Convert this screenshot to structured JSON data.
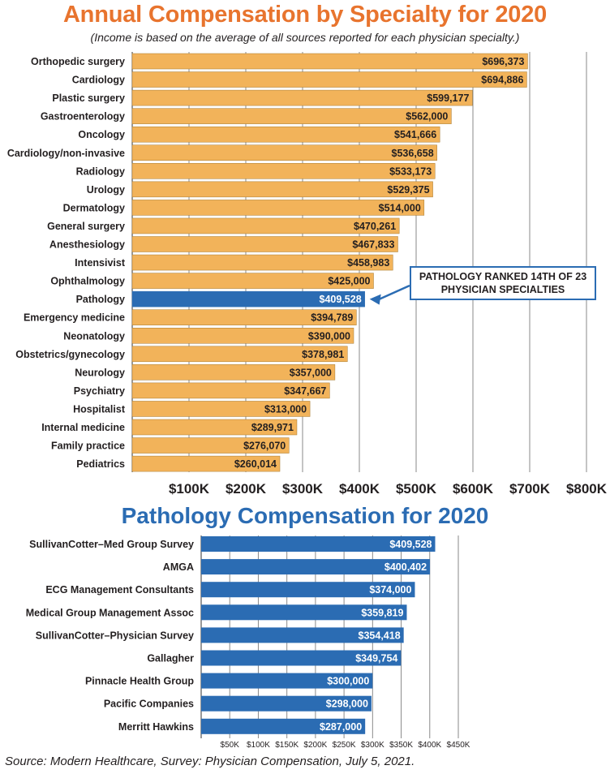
{
  "colors": {
    "orange": "#f2b35a",
    "blue": "#2b6cb3",
    "title_orange": "#e8742e",
    "grid": "#8a8a8a",
    "edge": "#333333"
  },
  "header": {
    "title": "Annual Compensation by Specialty for 2020",
    "subtitle": "(Income is based on the average of all sources reported for each physician specialty.)"
  },
  "callout": {
    "text": "PATHOLOGY RANKED 14TH OF 23 PHYSICIAN SPECIALTIES"
  },
  "section2": {
    "title": "Pathology Compensation for 2020"
  },
  "footer": {
    "source": "Source: Modern Healthcare, Survey: Physician Compensation, July 5, 2021."
  },
  "chart_data": [
    {
      "type": "bar",
      "orientation": "horizontal",
      "title": "Annual Compensation by Specialty for 2020",
      "categories": [
        "Orthopedic surgery",
        "Cardiology",
        "Plastic surgery",
        "Gastroenterology",
        "Oncology",
        "Cardiology/non-invasive",
        "Radiology",
        "Urology",
        "Dermatology",
        "General surgery",
        "Anesthesiology",
        "Intensivist",
        "Ophthalmology",
        "Pathology",
        "Emergency medicine",
        "Neonatology",
        "Obstetrics/gynecology",
        "Neurology",
        "Psychiatry",
        "Hospitalist",
        "Internal medicine",
        "Family practice",
        "Pediatrics"
      ],
      "values": [
        696373,
        694886,
        599177,
        562000,
        541666,
        536658,
        533173,
        529375,
        514000,
        470261,
        467833,
        458983,
        425000,
        409528,
        394789,
        390000,
        378981,
        357000,
        347667,
        313000,
        289971,
        276070,
        260014
      ],
      "value_labels": [
        "$696,373",
        "$694,886",
        "$599,177",
        "$562,000",
        "$541,666",
        "$536,658",
        "$533,173",
        "$529,375",
        "$514,000",
        "$470,261",
        "$467,833",
        "$458,983",
        "$425,000",
        "$409,528",
        "$394,789",
        "$390,000",
        "$378,981",
        "$357,000",
        "$347,667",
        "$313,000",
        "$289,971",
        "$276,070",
        "$260,014"
      ],
      "highlight": "Pathology",
      "ticks": [
        100000,
        200000,
        300000,
        400000,
        500000,
        600000,
        700000,
        800000
      ],
      "tick_labels": [
        "$100K",
        "$200K",
        "$300K",
        "$400K",
        "$500K",
        "$600K",
        "$700K",
        "$800K"
      ],
      "xlim": [
        0,
        800000
      ],
      "grid": true
    },
    {
      "type": "bar",
      "orientation": "horizontal",
      "title": "Pathology Compensation for 2020",
      "categories": [
        "SullivanCotter–Med Group Survey",
        "AMGA",
        "ECG Management Consultants",
        "Medical Group Management Assoc",
        "SullivanCotter–Physician Survey",
        "Gallagher",
        "Pinnacle Health Group",
        "Pacific Companies",
        "Merritt Hawkins"
      ],
      "values": [
        409528,
        400402,
        374000,
        359819,
        354418,
        349754,
        300000,
        298000,
        287000
      ],
      "value_labels": [
        "$409,528",
        "$400,402",
        "$374,000",
        "$359,819",
        "$354,418",
        "$349,754",
        "$300,000",
        "$298,000",
        "$287,000"
      ],
      "ticks": [
        50000,
        100000,
        150000,
        200000,
        250000,
        300000,
        350000,
        400000,
        450000
      ],
      "tick_labels": [
        "$50K",
        "$100K",
        "$150K",
        "$200K",
        "$250K",
        "$300K",
        "$350K",
        "$400K",
        "$450K"
      ],
      "xlim": [
        0,
        450000
      ],
      "grid": true
    }
  ]
}
